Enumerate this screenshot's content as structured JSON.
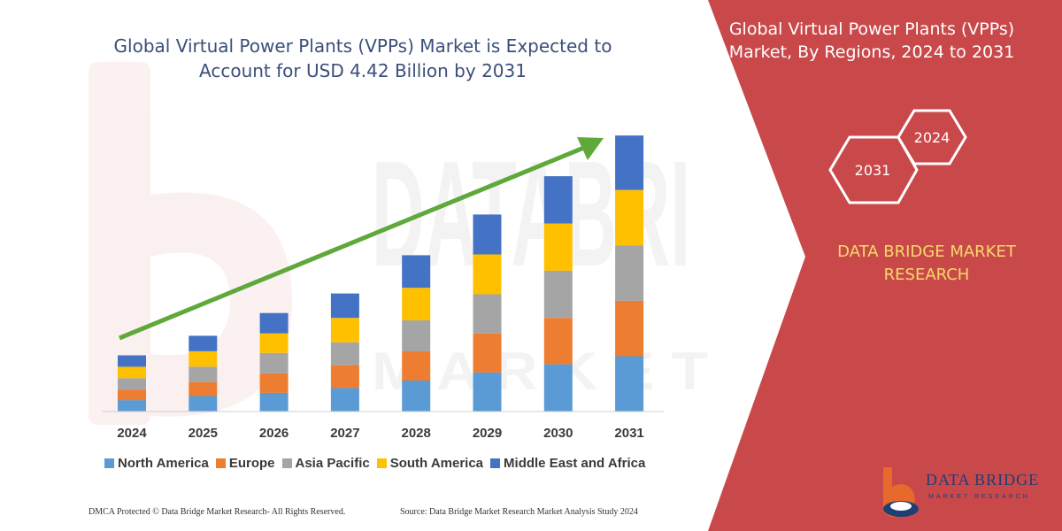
{
  "chart_data": {
    "type": "bar",
    "stacked": true,
    "title": "Global Virtual Power Plants (VPPs) Market is Expected to Account for USD 4.42 Billion by 2031",
    "categories": [
      "2024",
      "2025",
      "2026",
      "2027",
      "2028",
      "2029",
      "2030",
      "2031"
    ],
    "series": [
      {
        "name": "North America",
        "color": "#5b9bd5",
        "values": [
          14,
          19,
          23,
          29,
          38,
          48,
          58,
          68
        ]
      },
      {
        "name": "Europe",
        "color": "#ed7d31",
        "values": [
          13,
          17,
          24,
          28,
          36,
          48,
          57,
          68
        ]
      },
      {
        "name": "Asia Pacific",
        "color": "#a5a5a5",
        "values": [
          14,
          19,
          25,
          28,
          38,
          48,
          58,
          68
        ]
      },
      {
        "name": "South America",
        "color": "#ffc000",
        "values": [
          14,
          19,
          24,
          30,
          40,
          49,
          58,
          68
        ]
      },
      {
        "name": "Middle East and Africa",
        "color": "#4472c4",
        "values": [
          14,
          19,
          25,
          30,
          40,
          49,
          58,
          67
        ]
      }
    ],
    "xlabel": "",
    "ylabel": "",
    "grid": false,
    "legend_position": "bottom",
    "trend_arrow": true,
    "trend_arrow_color": "#5fa83a"
  },
  "side_panel": {
    "title": "Global Virtual Power Plants (VPPs) Market, By Regions, 2024 to 2031",
    "hex_start_year": "2024",
    "hex_end_year": "2031",
    "brand_text": "DATA BRIDGE MARKET RESEARCH",
    "panel_color": "#c9494b",
    "accent_color": "#f6d86a"
  },
  "footer": {
    "left": "DMCA Protected © Data Bridge Market Research- All Rights Reserved.",
    "right": "Source: Data Bridge Market Research Market Analysis Study 2024"
  },
  "logo": {
    "name": "DATA BRIDGE",
    "sub": "MARKET RESEARCH"
  }
}
